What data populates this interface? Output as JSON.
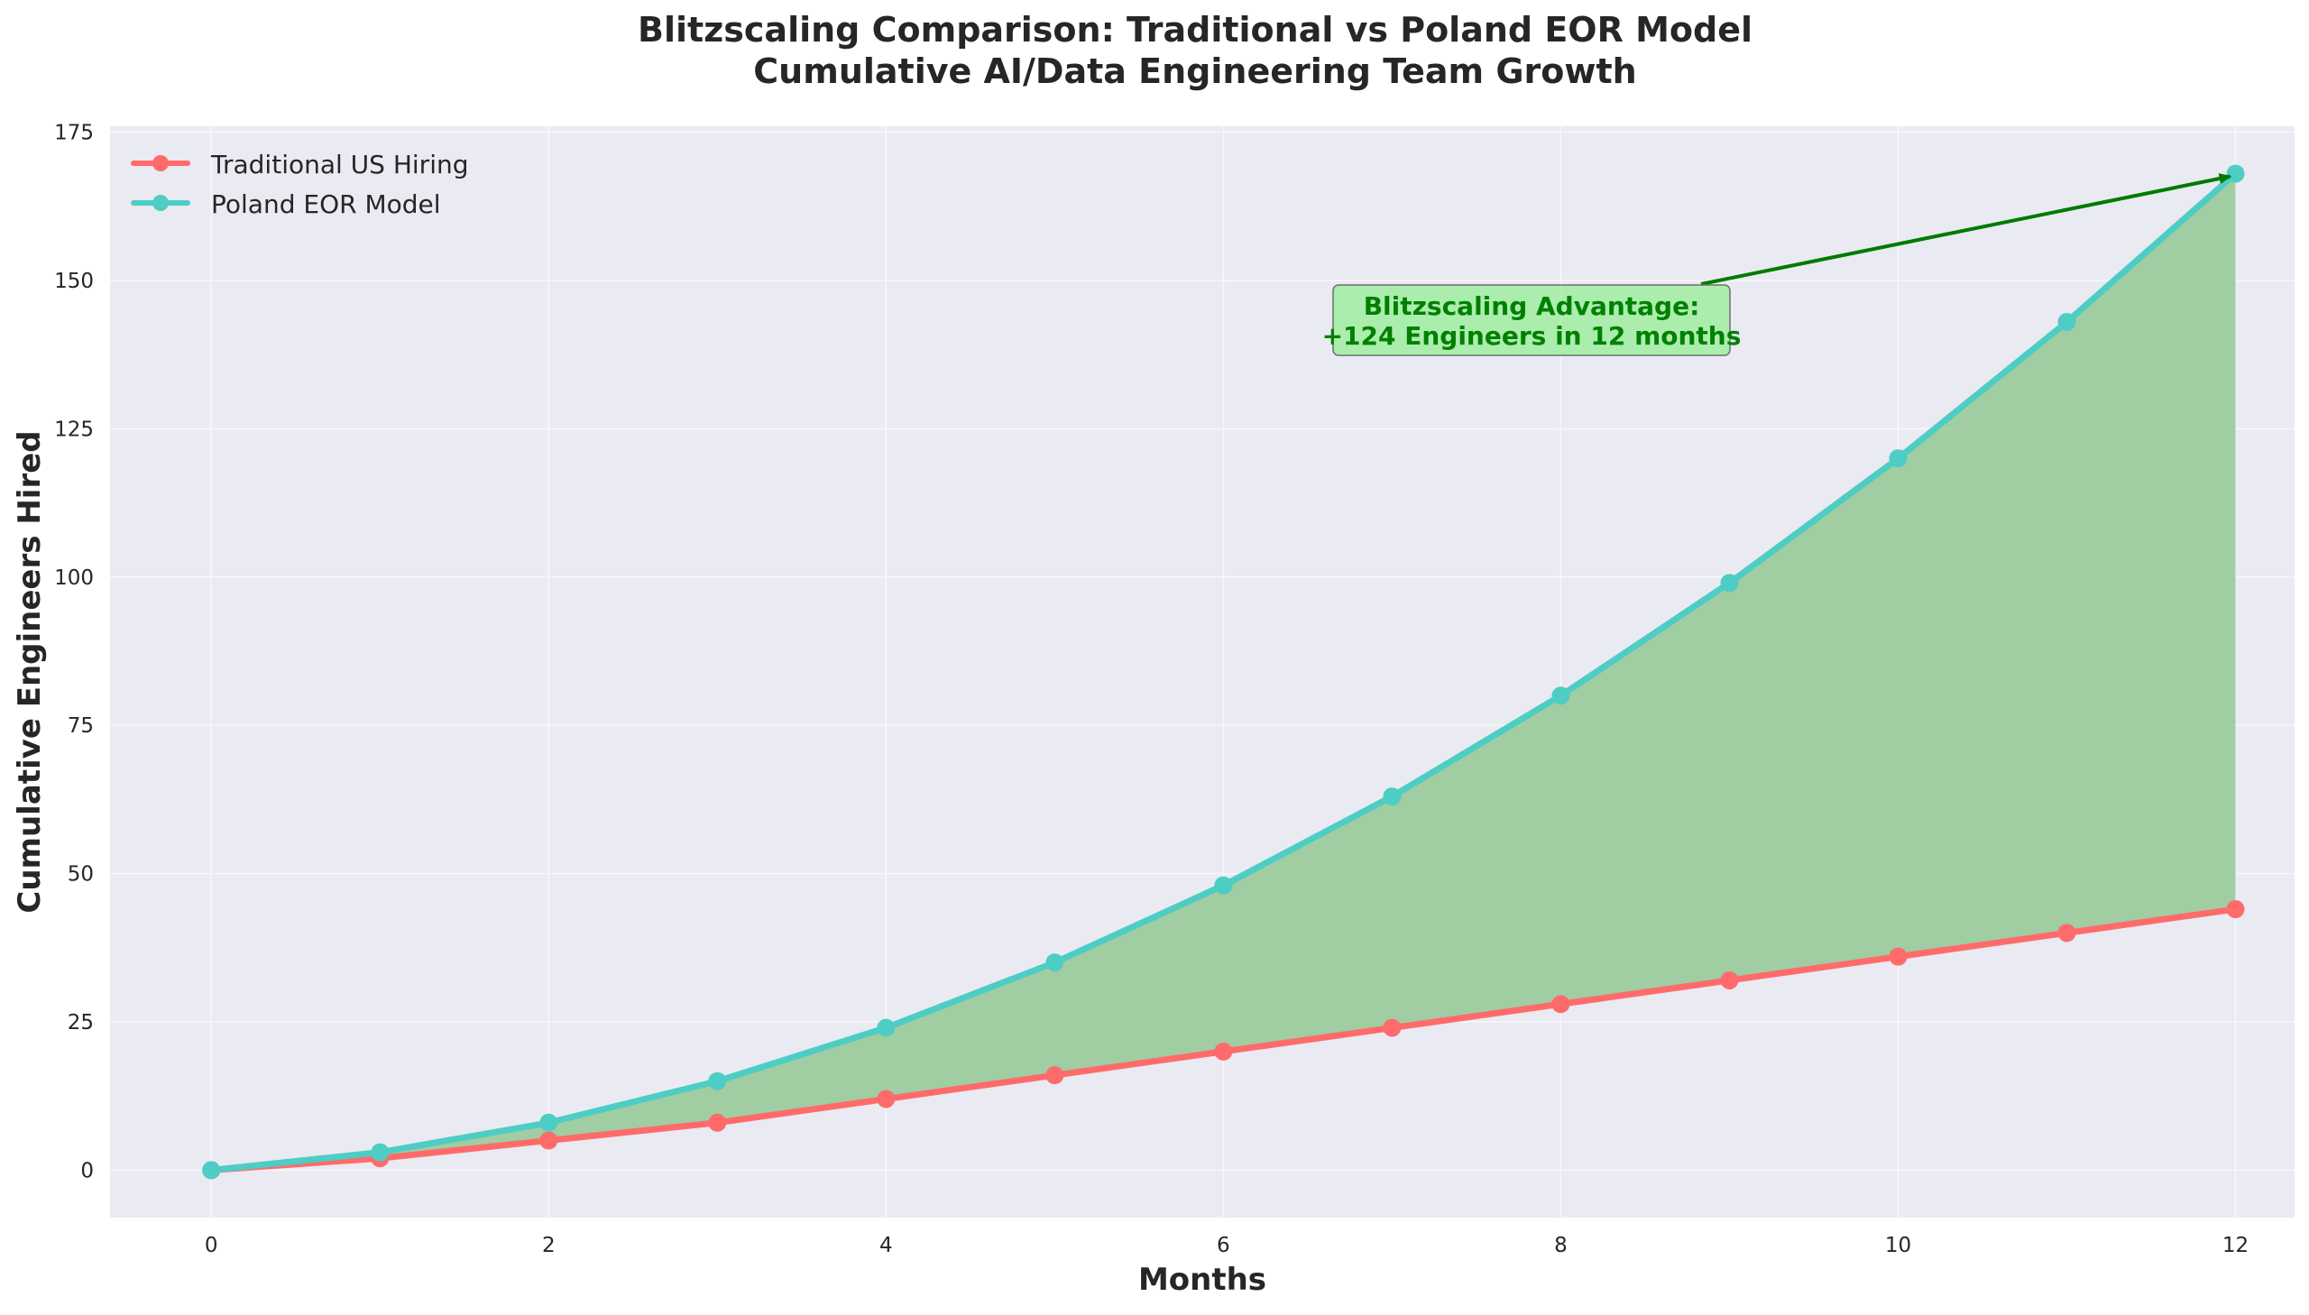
{
  "chart_data": {
    "type": "line",
    "title": "Blitzscaling Comparison: Traditional vs Poland EOR Model",
    "subtitle": "Cumulative AI/Data Engineering Team Growth",
    "xlabel": "Months",
    "ylabel": "Cumulative Engineers Hired",
    "xlim": [
      -0.6,
      12.35
    ],
    "ylim": [
      -8,
      176
    ],
    "xticks": [
      0,
      2,
      4,
      6,
      8,
      10,
      12
    ],
    "yticks": [
      0,
      25,
      50,
      75,
      100,
      125,
      150,
      175
    ],
    "grid": true,
    "legend_position": "top-left",
    "x": [
      0,
      1,
      2,
      3,
      4,
      5,
      6,
      7,
      8,
      9,
      10,
      11,
      12
    ],
    "series": [
      {
        "name": "Traditional US Hiring",
        "color": "#ff6b6b",
        "values": [
          0,
          2,
          5,
          8,
          12,
          16,
          20,
          24,
          28,
          32,
          36,
          40,
          44
        ]
      },
      {
        "name": "Poland EOR Model",
        "color": "#4ecdc4",
        "values": [
          0,
          3,
          8,
          15,
          24,
          35,
          48,
          63,
          80,
          99,
          120,
          143,
          168
        ]
      }
    ],
    "fill_between": {
      "color": "#8fc68f",
      "between": [
        "Traditional US Hiring",
        "Poland EOR Model"
      ]
    },
    "annotation": {
      "line1": "Blitzscaling Advantage:",
      "line2": "+124 Engineers in 12 months",
      "arrow_to": {
        "x": 12,
        "y": 168
      },
      "text_color": "#008000",
      "box_color": "#90ee90"
    },
    "background_color": "#eaeaf2"
  }
}
